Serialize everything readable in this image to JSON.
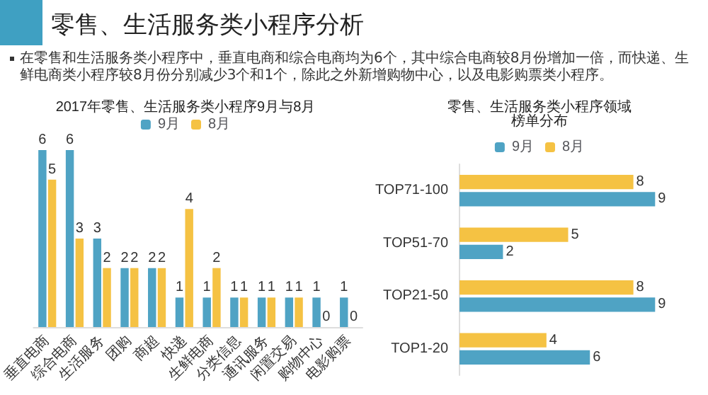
{
  "chart_data": [
    {
      "type": "bar",
      "title": "2017年零售、生活服务类小程序9月与8月",
      "annotations": [
        "零售、生活服务类小程序分析",
        "在零售和生活服务类小程序中，垂直电商和综合电商均为6个，其中综合电商较8月份增加一倍，而快递、生鲜电商类小程序较8月份分别减少3个和1个，除此之外新增购物中心，以及电影购票类小程序。"
      ],
      "categories": [
        "垂直电商",
        "综合电商",
        "生活服务",
        "团购",
        "商超",
        "快递",
        "生鲜电商",
        "分类信息",
        "通讯服务",
        "闲置交易",
        "购物中心",
        "电影购票"
      ],
      "series": [
        {
          "name": "9月",
          "color": "#4fa3c4",
          "values": [
            6,
            6,
            3,
            2,
            2,
            1,
            1,
            1,
            1,
            1,
            1,
            1
          ]
        },
        {
          "name": "8月",
          "color": "#f5c243",
          "values": [
            5,
            3,
            2,
            2,
            2,
            4,
            2,
            1,
            1,
            1,
            0,
            0
          ]
        }
      ],
      "data_labels": true,
      "legend": "top"
    },
    {
      "type": "bar",
      "title": "零售、生活服务类小程序领域榜单分布",
      "orientation": "horizontal",
      "categories": [
        "TOP71-100",
        "TOP51-70",
        "TOP21-50",
        "TOP1-20"
      ],
      "series": [
        {
          "name": "9月",
          "color": "#4fa3c4",
          "values": [
            9,
            2,
            9,
            6
          ]
        },
        {
          "name": "8月",
          "color": "#f5c243",
          "values": [
            8,
            5,
            8,
            4
          ]
        }
      ],
      "data_labels": true,
      "legend": "top"
    }
  ]
}
